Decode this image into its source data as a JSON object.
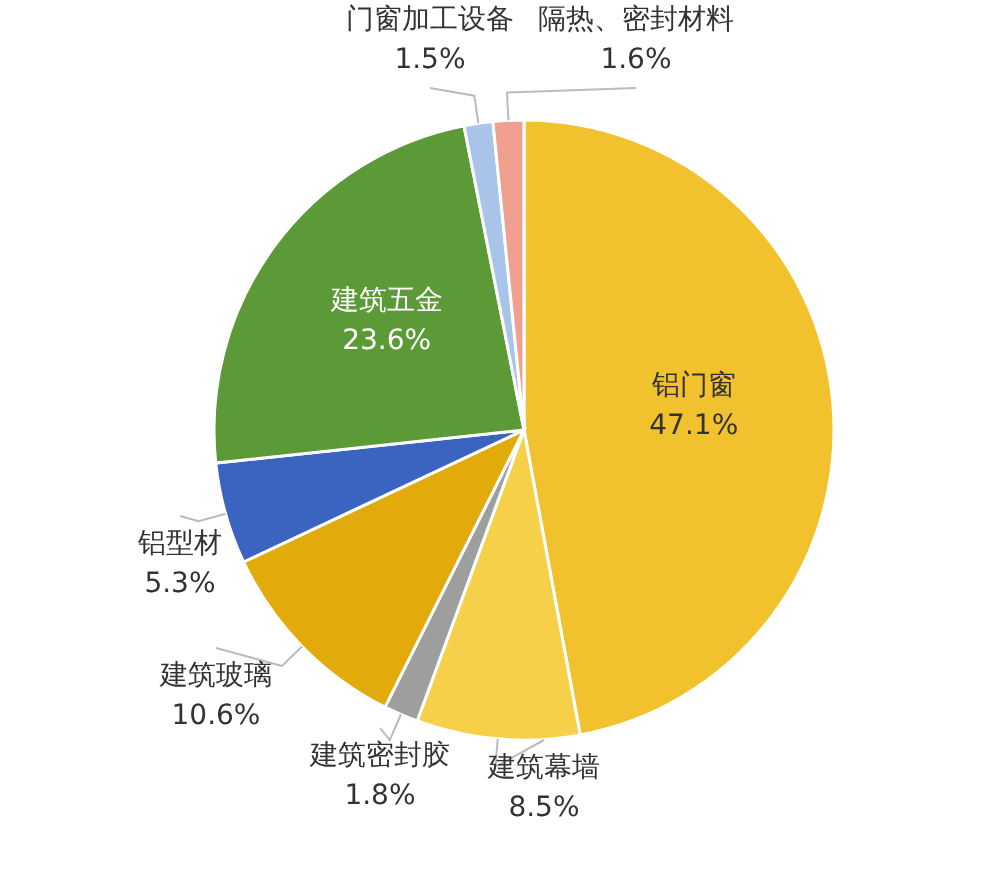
{
  "chart_data": {
    "type": "pie",
    "categories": [
      "铝门窗",
      "建筑幕墙",
      "建筑密封胶",
      "建筑玻璃",
      "铝型材",
      "建筑五金",
      "门窗加工设备",
      "隔热、密封材料"
    ],
    "values": [
      47.1,
      8.5,
      1.8,
      10.6,
      5.3,
      23.6,
      1.5,
      1.6
    ],
    "colors": [
      "#f2c12e",
      "#f7d04a",
      "#9e9e9e",
      "#e3aa0c",
      "#3a64c0",
      "#5b9a36",
      "#a8c4e8",
      "#f0a08e"
    ],
    "value_labels": [
      "47.1%",
      "8.5%",
      "1.8%",
      "10.6%",
      "5.3%",
      "23.6%",
      "1.5%",
      "1.6%"
    ]
  }
}
